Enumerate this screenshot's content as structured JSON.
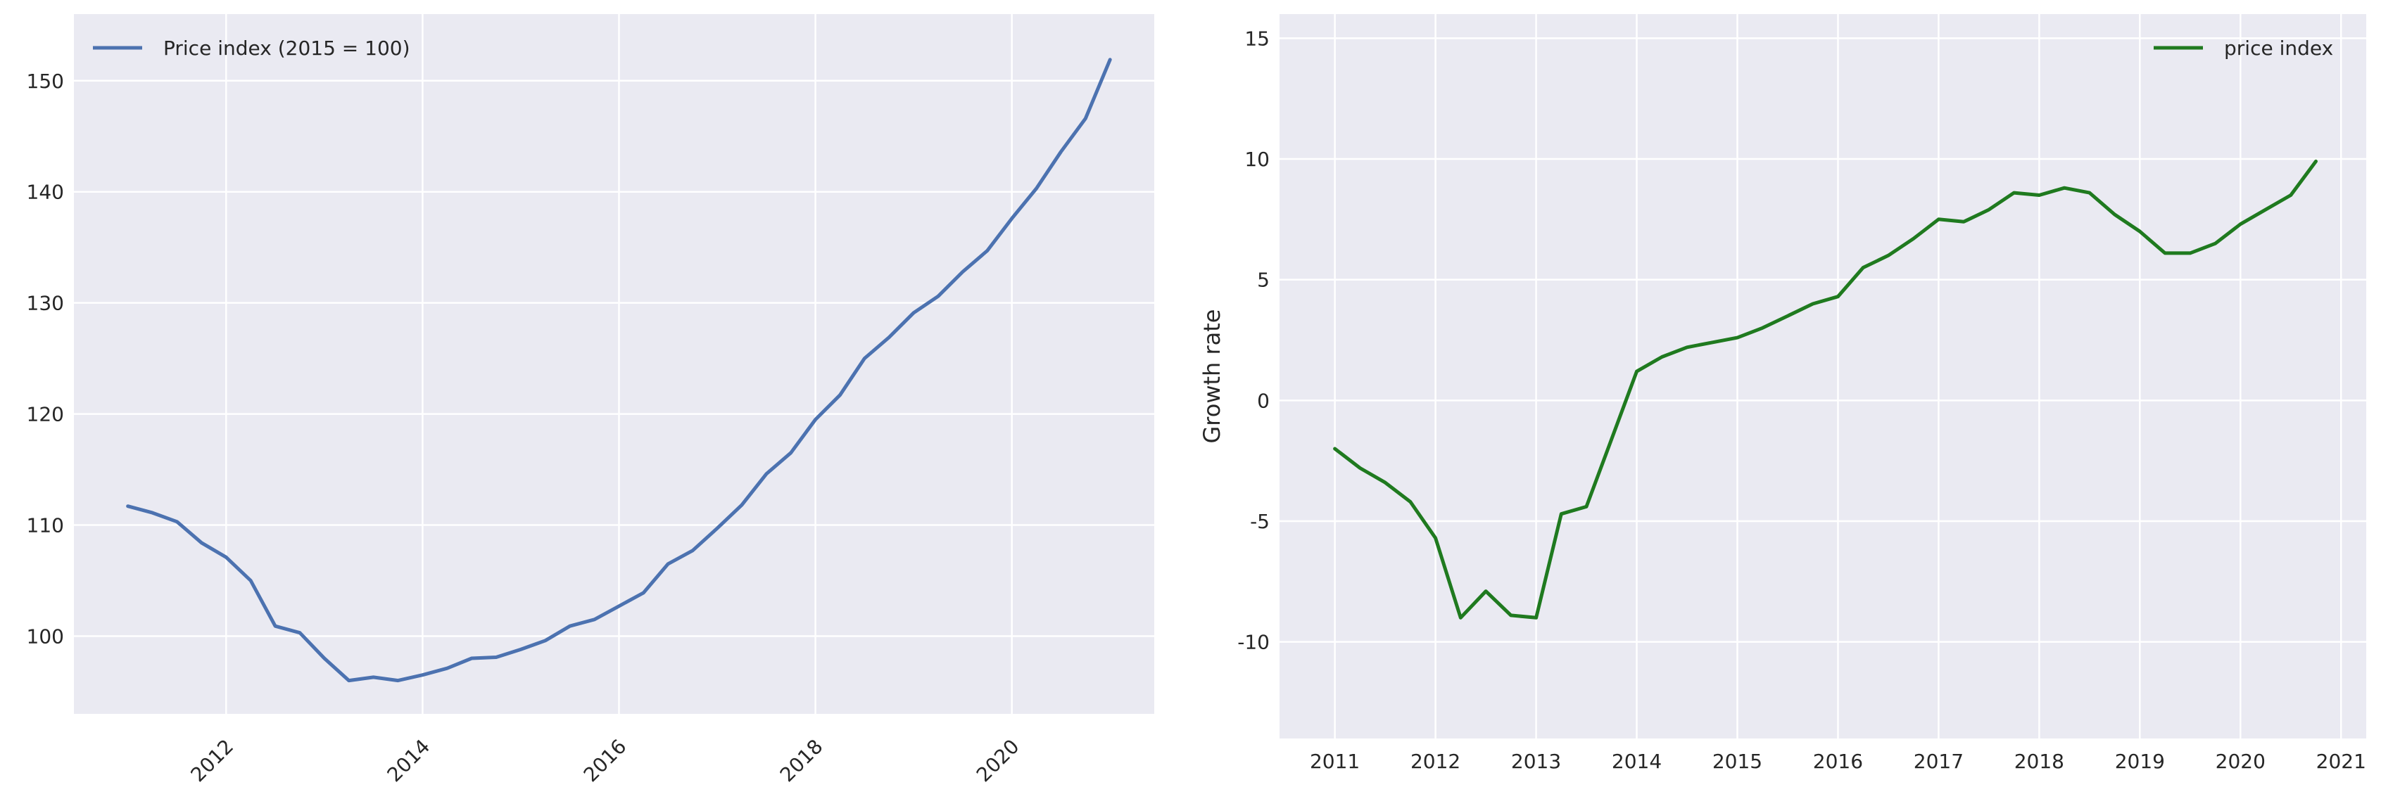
{
  "chart_data": [
    {
      "type": "line",
      "title": "",
      "xlabel": "",
      "ylabel": "",
      "x_tick_labels": [
        "2012",
        "2014",
        "2016",
        "2018",
        "2020"
      ],
      "x_tick_values": [
        2012,
        2014,
        2016,
        2018,
        2020
      ],
      "x_tick_rotation": 45,
      "y_tick_labels": [
        "100",
        "110",
        "120",
        "130",
        "140",
        "150"
      ],
      "y_tick_values": [
        100,
        110,
        120,
        130,
        140,
        150
      ],
      "xlim": [
        2010.45,
        2021.45
      ],
      "ylim": [
        93,
        156
      ],
      "grid": true,
      "legend_position": "top-left",
      "series": [
        {
          "name": "Price index (2015 = 100)",
          "color": "#4c72b0",
          "x": [
            2011.0,
            2011.25,
            2011.5,
            2011.75,
            2012.0,
            2012.25,
            2012.5,
            2012.75,
            2013.0,
            2013.25,
            2013.5,
            2013.75,
            2014.0,
            2014.25,
            2014.5,
            2014.75,
            2015.0,
            2015.25,
            2015.5,
            2015.75,
            2016.0,
            2016.25,
            2016.5,
            2016.75,
            2017.0,
            2017.25,
            2017.5,
            2017.75,
            2018.0,
            2018.25,
            2018.5,
            2018.75,
            2019.0,
            2019.25,
            2019.5,
            2019.75,
            2020.0,
            2020.25,
            2020.5,
            2020.75,
            2021.0
          ],
          "y": [
            111.7,
            111.1,
            110.3,
            108.4,
            107.1,
            105.0,
            100.9,
            100.3,
            98.0,
            96.0,
            96.3,
            96.0,
            96.5,
            97.1,
            98.0,
            98.1,
            98.8,
            99.6,
            100.9,
            101.5,
            102.7,
            103.9,
            106.5,
            107.7,
            109.7,
            111.8,
            114.6,
            116.5,
            119.5,
            121.7,
            125.0,
            126.9,
            129.1,
            130.6,
            132.8,
            134.7,
            137.6,
            140.3,
            143.6,
            146.6,
            151.9
          ]
        }
      ]
    },
    {
      "type": "line",
      "title": "",
      "xlabel": "",
      "ylabel": "Growth rate",
      "x_tick_labels": [
        "2011",
        "2012",
        "2013",
        "2014",
        "2015",
        "2016",
        "2017",
        "2018",
        "2019",
        "2020",
        "2021"
      ],
      "x_tick_values": [
        2011,
        2012,
        2013,
        2014,
        2015,
        2016,
        2017,
        2018,
        2019,
        2020,
        2021
      ],
      "y_tick_labels": [
        "-10",
        "-5",
        "0",
        "5",
        "10",
        "15"
      ],
      "y_tick_values": [
        -10,
        -5,
        0,
        5,
        10,
        15
      ],
      "xlim": [
        2010.45,
        2021.25
      ],
      "ylim": [
        -14,
        16
      ],
      "grid": true,
      "legend_position": "top-right",
      "series": [
        {
          "name": "price index",
          "color": "#1f7a1f",
          "x": [
            2011.0,
            2011.25,
            2011.5,
            2011.75,
            2012.0,
            2012.25,
            2012.5,
            2012.75,
            2013.0,
            2013.25,
            2013.5,
            2013.75,
            2014.0,
            2014.25,
            2014.5,
            2014.75,
            2015.0,
            2015.25,
            2015.5,
            2015.75,
            2016.0,
            2016.25,
            2016.5,
            2016.75,
            2017.0,
            2017.25,
            2017.5,
            2017.75,
            2018.0,
            2018.25,
            2018.5,
            2018.75,
            2019.0,
            2019.25,
            2019.5,
            2019.75,
            2020.0,
            2020.25,
            2020.5,
            2020.75
          ],
          "y": [
            -2.0,
            -2.8,
            -3.4,
            -4.2,
            -5.7,
            -9.0,
            -7.9,
            -8.9,
            -9.0,
            -4.7,
            -4.4,
            -1.6,
            1.2,
            1.8,
            2.2,
            2.4,
            2.6,
            3.0,
            3.5,
            4.0,
            4.3,
            5.5,
            6.0,
            6.7,
            7.5,
            7.4,
            7.9,
            8.6,
            8.5,
            8.8,
            8.6,
            7.7,
            7.0,
            6.1,
            6.1,
            6.5,
            7.3,
            7.9,
            8.5,
            9.9
          ]
        }
      ]
    }
  ]
}
